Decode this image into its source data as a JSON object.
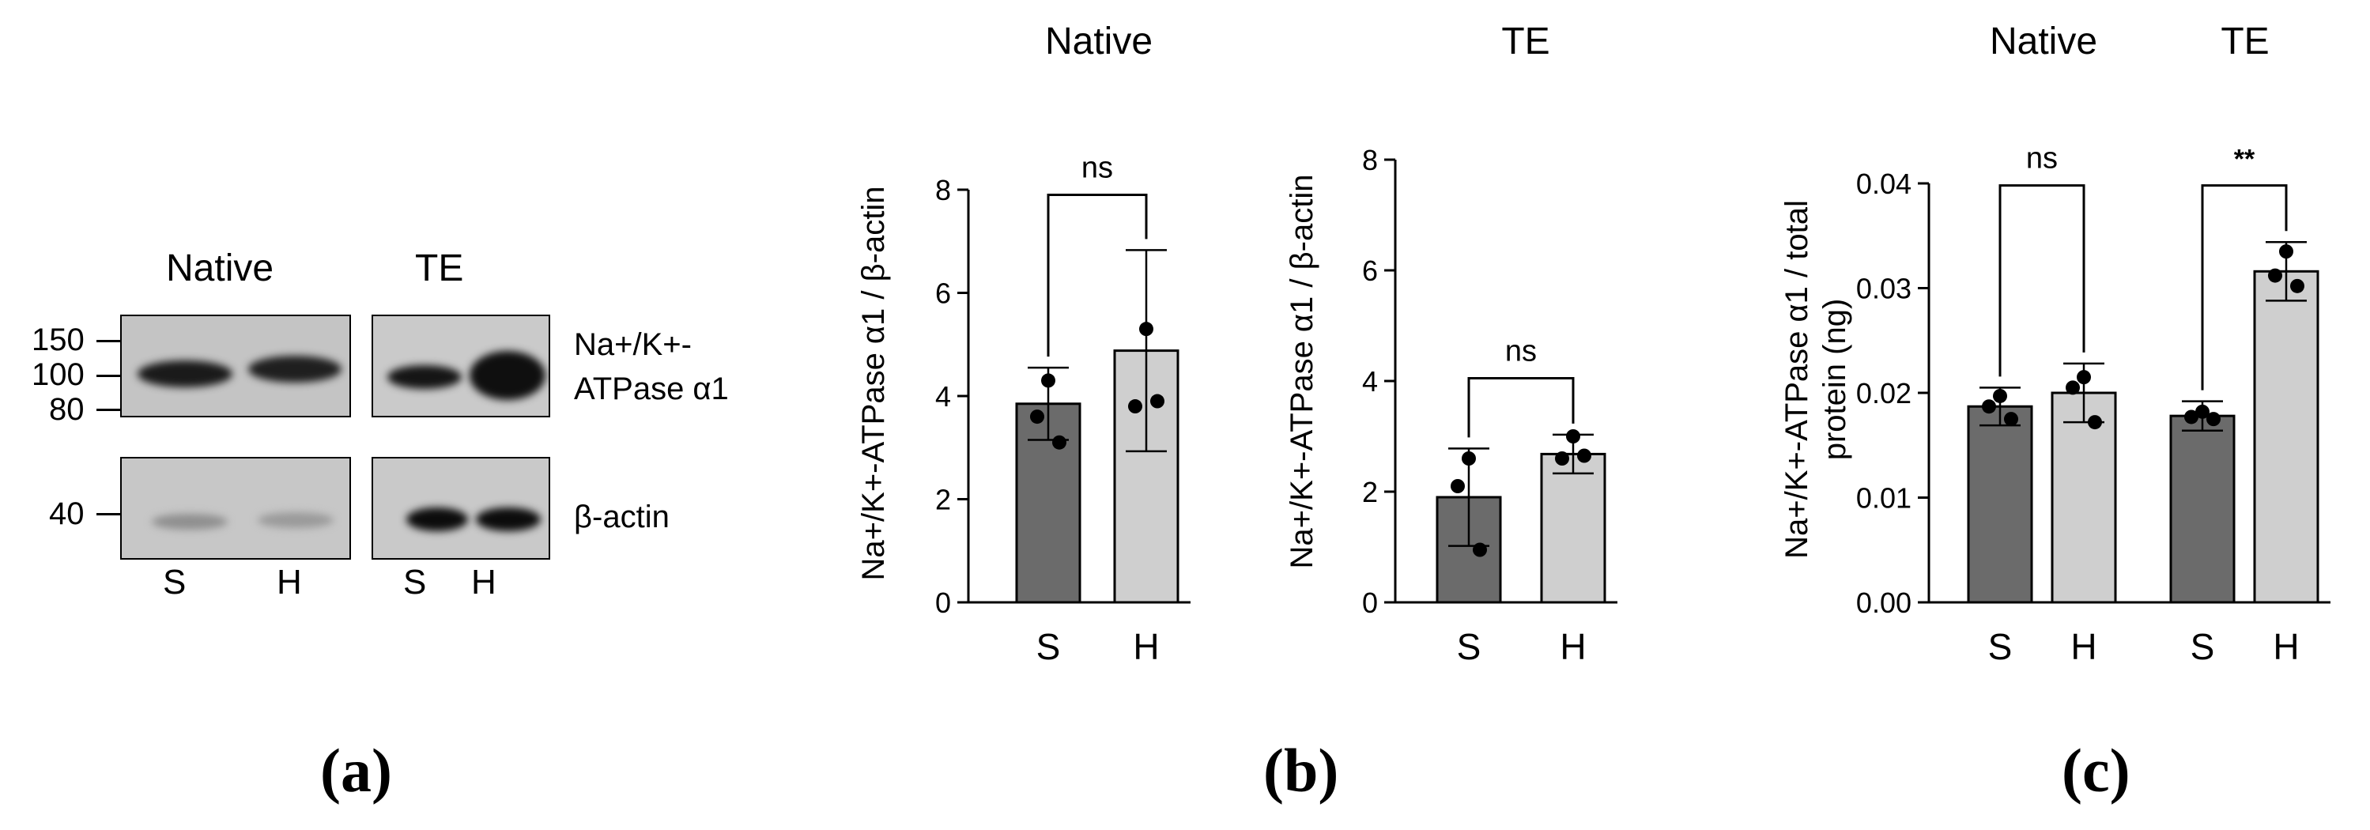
{
  "panel_a": {
    "group_labels": [
      "Native",
      "TE"
    ],
    "marker_labels": [
      "150",
      "100",
      "80",
      "40"
    ],
    "protein_label_line1": "Na+/K+-",
    "protein_label_line2": "ATPase α1",
    "actin_label": "β-actin",
    "lane_labels": [
      "S",
      "H",
      "S",
      "H"
    ],
    "caption": "(a)"
  },
  "panel_b_caption": "(b)",
  "panel_c_caption": "(c)",
  "colors": {
    "S": "#6b6b6b",
    "H": "#cfcfcf",
    "edge": "#000000"
  },
  "chart_data": [
    {
      "type": "bar",
      "title": "Native",
      "ylabel": "Na+/K+-ATPase α1 / β-actin",
      "categories": [
        "S",
        "H"
      ],
      "values": [
        3.85,
        4.88
      ],
      "errors": [
        0.7,
        1.95
      ],
      "points": [
        [
          4.3,
          3.6,
          3.1
        ],
        [
          5.3,
          3.8,
          3.9
        ]
      ],
      "ylim": [
        0,
        8
      ],
      "yticks": [
        0,
        2,
        4,
        6,
        8
      ],
      "comparisons": [
        {
          "a": 0,
          "b": 1,
          "y": 7.9,
          "label": "ns"
        }
      ]
    },
    {
      "type": "bar",
      "title": "TE",
      "ylabel": "Na+/K+-ATPase α1 / β-actin",
      "categories": [
        "S",
        "H"
      ],
      "values": [
        1.9,
        2.68
      ],
      "errors": [
        0.88,
        0.35
      ],
      "points": [
        [
          2.6,
          2.1,
          0.95
        ],
        [
          3.0,
          2.6,
          2.65
        ]
      ],
      "ylim": [
        0,
        8
      ],
      "yticks": [
        0,
        2,
        4,
        6,
        8
      ],
      "comparisons": [
        {
          "a": 0,
          "b": 1,
          "y": 4.05,
          "label": "ns"
        }
      ]
    },
    {
      "type": "bar",
      "title": "Native TE",
      "group_titles": [
        "Native",
        "TE"
      ],
      "ylabel_lines": [
        "Na+/K+-ATPase α1 / total",
        "protein (ng)"
      ],
      "categories": [
        "S",
        "H",
        "S",
        "H"
      ],
      "values": [
        0.0187,
        0.02,
        0.0178,
        0.0316
      ],
      "errors": [
        0.0018,
        0.0028,
        0.0014,
        0.0028
      ],
      "points": [
        [
          0.0197,
          0.0187,
          0.0175
        ],
        [
          0.0215,
          0.0205,
          0.0172
        ],
        [
          0.0182,
          0.0177,
          0.0175
        ],
        [
          0.0335,
          0.0312,
          0.0302
        ]
      ],
      "ylim": [
        0,
        0.04
      ],
      "yticks": [
        "0.00",
        "0.01",
        "0.02",
        "0.03",
        "0.04"
      ],
      "comparisons": [
        {
          "a": 0,
          "b": 1,
          "y": 0.0398,
          "label": "ns"
        },
        {
          "a": 2,
          "b": 3,
          "y": 0.0398,
          "label": "**"
        }
      ]
    }
  ]
}
